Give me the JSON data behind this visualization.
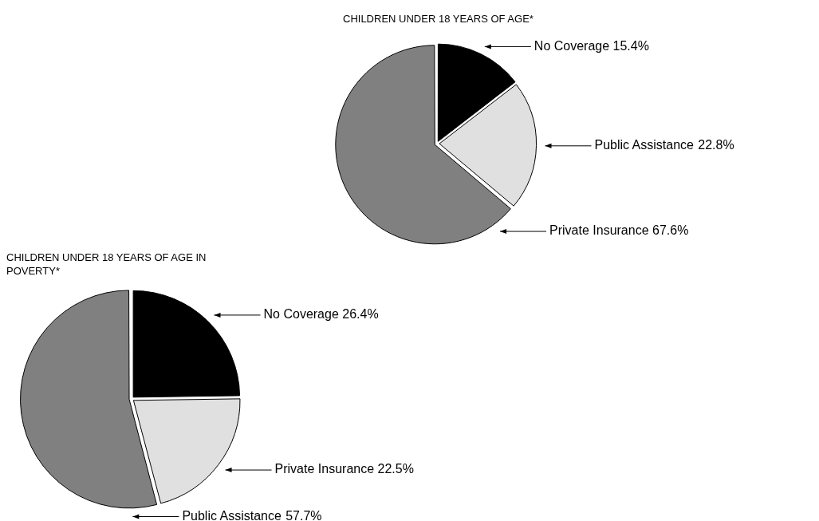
{
  "chart_data": [
    {
      "type": "pie",
      "title": "CHILDREN UNDER 18 YEARS OF AGE*",
      "categories": [
        "No Coverage",
        "Public Assistance",
        "Private Insurance"
      ],
      "values": [
        15.4,
        22.8,
        67.6
      ],
      "colors": [
        "#000000",
        "#e0e0e0",
        "#808080"
      ],
      "value_labels": [
        "15.4%",
        "22.8%",
        "67.6%"
      ]
    },
    {
      "type": "pie",
      "title": "CHILDREN UNDER 18 YEARS OF AGE IN POVERTY*",
      "categories": [
        "No Coverage",
        "Private Insurance",
        "Public Assistance"
      ],
      "values": [
        26.4,
        22.5,
        57.7
      ],
      "colors": [
        "#000000",
        "#e0e0e0",
        "#808080"
      ],
      "value_labels": [
        "26.4%",
        "22.5%",
        "57.7%"
      ]
    }
  ]
}
